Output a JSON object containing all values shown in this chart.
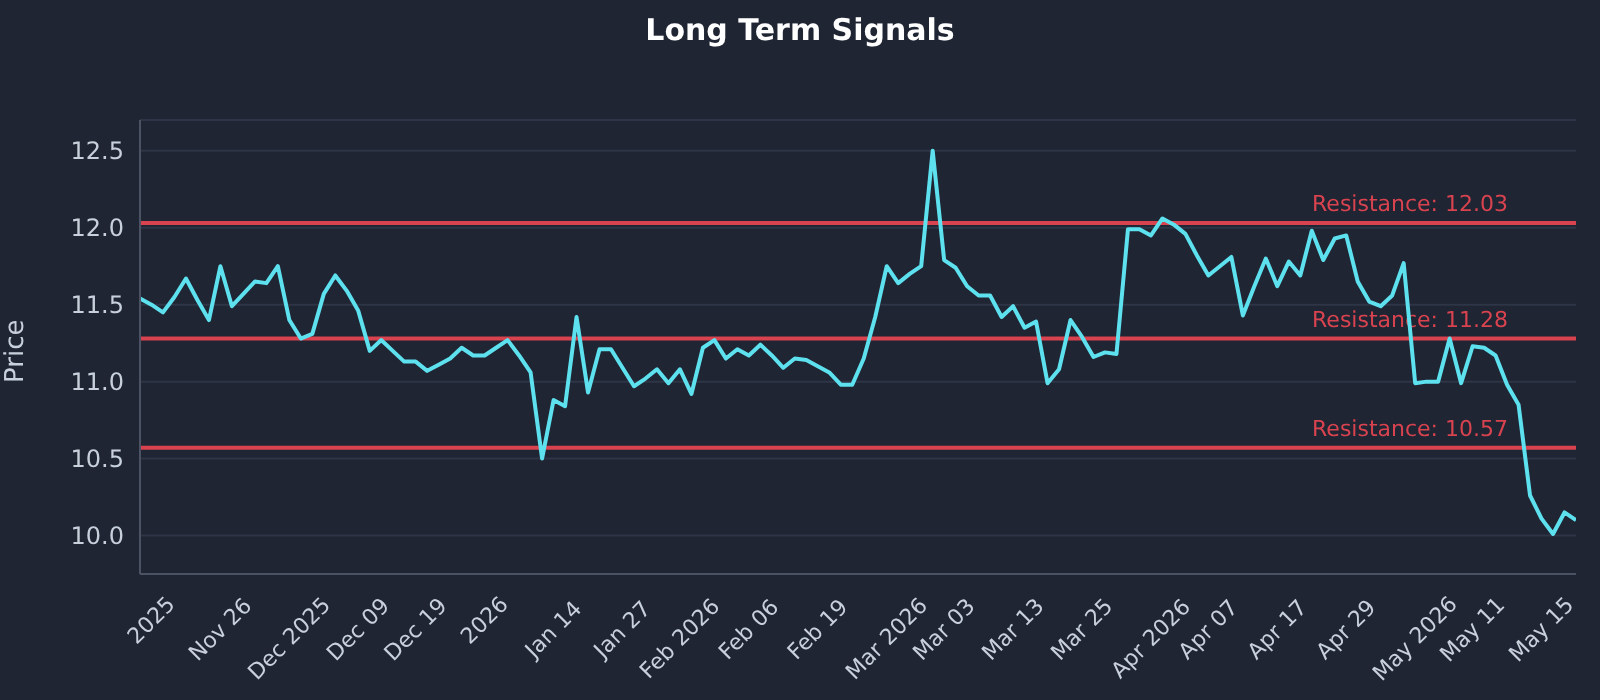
{
  "chart_data": {
    "type": "line",
    "title": "Long Term Signals",
    "ylabel": "Price",
    "categories": [
      null,
      "2025",
      null,
      null,
      null,
      null,
      null,
      "Nov 26",
      null,
      null,
      null,
      null,
      null,
      "Dec 2025",
      null,
      null,
      null,
      null,
      null,
      "Dec 09",
      null,
      null,
      null,
      null,
      "Dec 19",
      null,
      null,
      null,
      null,
      null,
      "2026",
      null,
      null,
      null,
      null,
      null,
      "Jan 14",
      null,
      null,
      null,
      null,
      null,
      "Jan 27",
      null,
      null,
      null,
      null,
      "Feb 2026",
      null,
      null,
      null,
      null,
      null,
      "Feb 06",
      null,
      null,
      null,
      null,
      null,
      "Feb 19",
      null,
      null,
      null,
      null,
      null,
      "Mar 2026",
      null,
      null,
      null,
      null,
      "Mar 03",
      null,
      null,
      null,
      null,
      null,
      "Mar 13",
      null,
      null,
      null,
      null,
      null,
      "Mar 25",
      null,
      null,
      null,
      null,
      null,
      "Apr 2026",
      null,
      null,
      null,
      null,
      "Apr 07",
      null,
      null,
      null,
      null,
      null,
      "Apr 17",
      null,
      null,
      null,
      null,
      null,
      "Apr 29",
      null,
      null,
      null,
      null,
      null,
      "May 2026",
      null,
      null,
      null,
      null,
      "May 11",
      null,
      null,
      null,
      null,
      null,
      "May 15",
      null,
      null,
      null
    ],
    "series": [
      {
        "color": "#5ee1ef",
        "values": [
          11.54,
          11.5,
          11.45,
          11.55,
          11.67,
          11.53,
          11.4,
          11.75,
          11.49,
          11.57,
          11.65,
          11.64,
          11.75,
          11.4,
          11.28,
          11.31,
          11.57,
          11.69,
          11.59,
          11.46,
          11.2,
          11.27,
          11.2,
          11.13,
          11.13,
          11.07,
          11.11,
          11.15,
          11.22,
          11.17,
          11.17,
          11.22,
          11.27,
          11.17,
          11.06,
          10.5,
          10.88,
          10.84,
          11.42,
          10.93,
          11.21,
          11.21,
          11.09,
          10.97,
          11.02,
          11.08,
          10.99,
          11.08,
          10.92,
          11.22,
          11.27,
          11.15,
          11.21,
          11.17,
          11.24,
          11.17,
          11.09,
          11.15,
          11.14,
          11.1,
          11.06,
          10.98,
          10.98,
          11.15,
          11.42,
          11.75,
          11.64,
          11.7,
          11.75,
          12.5,
          11.79,
          11.74,
          11.62,
          11.56,
          11.56,
          11.42,
          11.49,
          11.35,
          11.39,
          10.99,
          11.08,
          11.4,
          11.29,
          11.16,
          11.19,
          11.18,
          11.99,
          11.99,
          11.95,
          12.06,
          12.02,
          11.96,
          11.82,
          11.69,
          11.75,
          11.81,
          11.43,
          11.62,
          11.8,
          11.62,
          11.78,
          11.69,
          11.98,
          11.79,
          11.93,
          11.95,
          11.65,
          11.52,
          11.49,
          11.56,
          11.77,
          10.99,
          11.0,
          11.0,
          11.28,
          10.99,
          11.23,
          11.22,
          11.17,
          10.98,
          10.85,
          10.26,
          10.11,
          10.01,
          10.15,
          10.1
        ]
      }
    ],
    "ylim": [
      9.75,
      12.7
    ],
    "yticks": [
      {
        "value": 10,
        "label": "10.0"
      },
      10.5,
      {
        "value": 11,
        "label": "11.0"
      },
      11.5,
      {
        "value": 12,
        "label": "12.0"
      },
      12.5
    ],
    "grid": "y",
    "legend": false,
    "marker": "none",
    "line_style": "solid",
    "ref_lines": [
      {
        "axis": "y",
        "value": 12.03,
        "label": "Resistance: 12.03",
        "color": "#d9434f"
      },
      {
        "axis": "y",
        "value": 11.28,
        "label": "Resistance: 11.28",
        "color": "#d9434f"
      },
      {
        "axis": "y",
        "value": 10.57,
        "label": "Resistance: 10.57",
        "color": "#d9434f"
      }
    ]
  }
}
